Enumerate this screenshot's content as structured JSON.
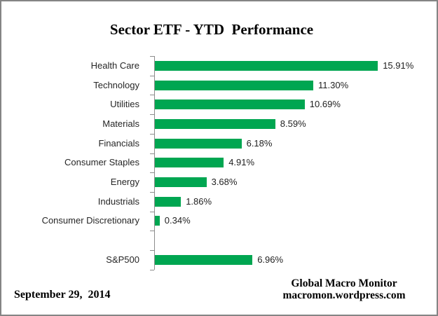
{
  "title": "Sector ETF - YTD  Performance",
  "footer": {
    "date": "September 29,  2014",
    "source_name": "Global Macro Monitor",
    "source_url": "macromon.wordpress.com"
  },
  "colors": {
    "bar": "#00A651",
    "axis": "#8c8c8c",
    "border": "#848484",
    "label_text": "#262626",
    "title_text": "#000000"
  },
  "chart_data": {
    "type": "bar",
    "orientation": "horizontal",
    "title": "Sector ETF - YTD  Performance",
    "xlabel": "",
    "ylabel": "",
    "xlim": [
      0,
      20
    ],
    "grid": false,
    "legend": "none",
    "value_suffix": "%",
    "categories": [
      "Health Care",
      "Technology",
      "Utilities",
      "Materials",
      "Financials",
      "Consumer Staples",
      "Energy",
      "Industrials",
      "Consumer Discretionary",
      "",
      "S&P500"
    ],
    "values": [
      15.91,
      11.3,
      10.69,
      8.59,
      6.18,
      4.91,
      3.68,
      1.86,
      0.34,
      null,
      6.96
    ],
    "value_labels": [
      "15.91%",
      "11.30%",
      "10.69%",
      "8.59%",
      "6.18%",
      "4.91%",
      "3.68%",
      "1.86%",
      "0.34%",
      "",
      "6.96%"
    ]
  }
}
